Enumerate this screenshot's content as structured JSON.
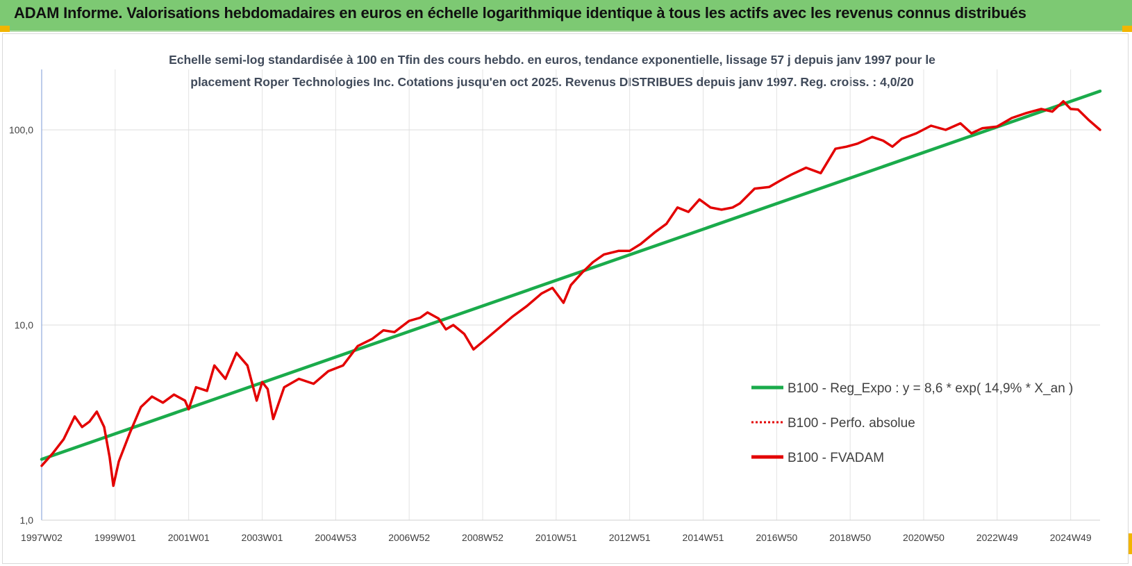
{
  "header": {
    "title": "ADAM Informe. Valorisations hebdomadaires en euros en échelle logarithmique identique à tous les actifs avec les revenus connus distribués"
  },
  "chart_data": {
    "type": "line",
    "title_lines": [
      "Echelle semi-log standardisée à 100 en Tfin des cours hebdo. en euros, tendance exponentielle, lissage 57 j depuis janv 1997 pour le",
      "placement Roper Technologies Inc. Cotations jusqu'en oct 2025. Revenus DISTRIBUES depuis janv 1997. Reg. croiss. : 4,0/20"
    ],
    "y_scale": "log",
    "ylim": [
      1,
      190
    ],
    "y_ticks": [
      {
        "value": 1,
        "label": "1,0"
      },
      {
        "value": 10,
        "label": "10,0"
      },
      {
        "value": 100,
        "label": "100,0"
      }
    ],
    "x_range": [
      1997.0,
      2025.8
    ],
    "x_ticks": [
      {
        "x": 1997.0,
        "label": "1997W02"
      },
      {
        "x": 1999.0,
        "label": "1999W01"
      },
      {
        "x": 2001.0,
        "label": "2001W01"
      },
      {
        "x": 2003.0,
        "label": "2003W01"
      },
      {
        "x": 2005.0,
        "label": "2004W53"
      },
      {
        "x": 2007.0,
        "label": "2006W52"
      },
      {
        "x": 2009.0,
        "label": "2008W52"
      },
      {
        "x": 2011.0,
        "label": "2010W51"
      },
      {
        "x": 2013.0,
        "label": "2012W51"
      },
      {
        "x": 2015.0,
        "label": "2014W51"
      },
      {
        "x": 2017.0,
        "label": "2016W50"
      },
      {
        "x": 2019.0,
        "label": "2018W50"
      },
      {
        "x": 2021.0,
        "label": "2020W50"
      },
      {
        "x": 2023.0,
        "label": "2022W49"
      },
      {
        "x": 2025.0,
        "label": "2024W49"
      }
    ],
    "grid": true,
    "legend_position": "right",
    "series": [
      {
        "name": "B100 - Reg_Expo : y = 8,6 * exp( 14,9% *  X_an )",
        "color": "#1aab4b",
        "style": "solid",
        "x": [
          1997.0,
          2025.8
        ],
        "y": [
          2.05,
          158
        ]
      },
      {
        "name": "B100 - Perfo. absolue",
        "color": "#e30000",
        "style": "dotted",
        "x": [],
        "y": []
      },
      {
        "name": "B100 - FVADAM",
        "color": "#e30000",
        "style": "solid",
        "x": [
          1997.0,
          1997.3,
          1997.6,
          1997.9,
          1998.1,
          1998.3,
          1998.5,
          1998.7,
          1998.85,
          1998.95,
          1999.1,
          1999.4,
          1999.7,
          2000.0,
          2000.3,
          2000.6,
          2000.9,
          2001.0,
          2001.2,
          2001.5,
          2001.7,
          2002.0,
          2002.3,
          2002.6,
          2002.85,
          2003.0,
          2003.15,
          2003.3,
          2003.6,
          2004.0,
          2004.4,
          2004.8,
          2005.2,
          2005.6,
          2006.0,
          2006.3,
          2006.6,
          2007.0,
          2007.3,
          2007.5,
          2007.8,
          2008.0,
          2008.2,
          2008.5,
          2008.75,
          2009.0,
          2009.4,
          2009.8,
          2010.2,
          2010.6,
          2010.9,
          2011.2,
          2011.4,
          2011.7,
          2012.0,
          2012.3,
          2012.7,
          2013.0,
          2013.3,
          2013.7,
          2014.0,
          2014.3,
          2014.6,
          2014.9,
          2015.2,
          2015.5,
          2015.8,
          2016.0,
          2016.4,
          2016.8,
          2017.1,
          2017.4,
          2017.8,
          2018.2,
          2018.6,
          2018.9,
          2019.2,
          2019.6,
          2019.9,
          2020.15,
          2020.4,
          2020.8,
          2021.2,
          2021.6,
          2022.0,
          2022.3,
          2022.6,
          2023.0,
          2023.4,
          2023.8,
          2024.2,
          2024.5,
          2024.8,
          2025.0,
          2025.2,
          2025.5,
          2025.8
        ],
        "y": [
          1.9,
          2.2,
          2.6,
          3.4,
          3.0,
          3.2,
          3.6,
          3.0,
          2.1,
          1.5,
          2.0,
          2.8,
          3.8,
          4.3,
          4.0,
          4.4,
          4.1,
          3.7,
          4.8,
          4.6,
          6.2,
          5.3,
          7.2,
          6.2,
          4.1,
          5.1,
          4.7,
          3.3,
          4.8,
          5.3,
          5.0,
          5.8,
          6.2,
          7.8,
          8.5,
          9.4,
          9.2,
          10.5,
          10.9,
          11.6,
          10.8,
          9.5,
          10.0,
          9.0,
          7.5,
          8.2,
          9.5,
          11.0,
          12.5,
          14.5,
          15.5,
          13.0,
          16.0,
          18.5,
          21.0,
          23.0,
          24.0,
          24.0,
          26.0,
          30.0,
          33.0,
          40.0,
          38.0,
          44.0,
          40.0,
          39.0,
          40.0,
          42.0,
          50.0,
          51.0,
          55.0,
          59.0,
          64.0,
          60.0,
          80.0,
          82.0,
          85.0,
          92.0,
          88.0,
          82.0,
          90.0,
          96.0,
          105.0,
          100.0,
          108.0,
          96.0,
          102.0,
          104.0,
          115.0,
          122.0,
          128.0,
          124.0,
          140.0,
          128.0,
          127.0,
          112.0,
          100.0
        ]
      }
    ]
  }
}
